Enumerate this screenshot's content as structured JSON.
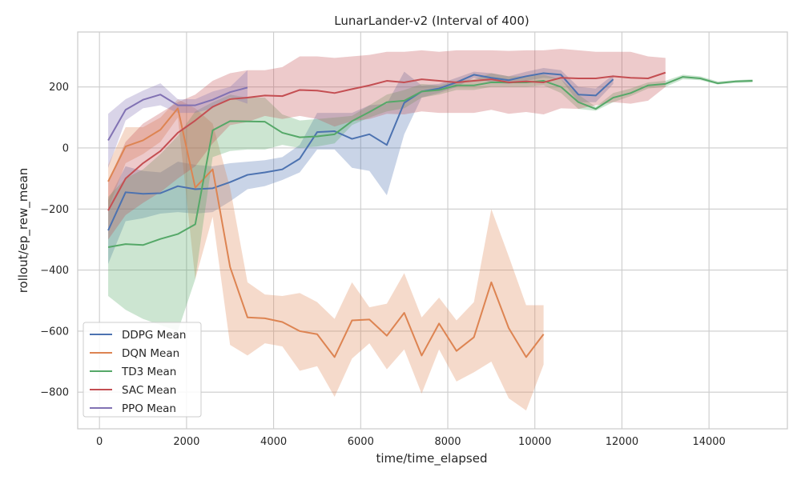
{
  "chart_data": {
    "type": "line",
    "title": "LunarLander-v2 (Interval of 400)",
    "xlabel": "time/time_elapsed",
    "ylabel": "rollout/ep_rew_mean",
    "xlim": [
      -500,
      15800
    ],
    "ylim": [
      -920,
      380
    ],
    "x_ticks": [
      0,
      2000,
      4000,
      6000,
      8000,
      10000,
      12000,
      14000
    ],
    "y_ticks": [
      -800,
      -600,
      -400,
      -200,
      0,
      200
    ],
    "grid": true,
    "legend_position": "lower-left",
    "series": [
      {
        "name": "DDPG Mean",
        "color": "#4c72b0",
        "x": [
          200,
          600,
          1000,
          1400,
          1800,
          2200,
          2600,
          3000,
          3400,
          3800,
          4200,
          4600,
          5000,
          5400,
          5800,
          6200,
          6600,
          7000,
          7400,
          7800,
          8200,
          8600,
          9000,
          9400,
          9800,
          10200,
          10600,
          11000,
          11400,
          11800
        ],
        "y": [
          -270,
          -145,
          -150,
          -148,
          -125,
          -135,
          -132,
          -112,
          -88,
          -80,
          -70,
          -35,
          52,
          55,
          30,
          45,
          10,
          148,
          185,
          195,
          215,
          240,
          230,
          222,
          235,
          245,
          240,
          175,
          172,
          225
        ],
        "lower": [
          -380,
          -240,
          -230,
          -215,
          -210,
          -215,
          -210,
          -175,
          -135,
          -125,
          -105,
          -80,
          -5,
          -5,
          -65,
          -75,
          -155,
          45,
          165,
          180,
          200,
          230,
          215,
          210,
          220,
          230,
          225,
          150,
          150,
          210
        ],
        "upper": [
          -170,
          -60,
          -75,
          -80,
          -45,
          -55,
          -60,
          -50,
          -45,
          -40,
          -30,
          10,
          115,
          115,
          115,
          140,
          145,
          250,
          205,
          210,
          230,
          250,
          245,
          235,
          250,
          262,
          255,
          200,
          195,
          240
        ]
      },
      {
        "name": "DQN Mean",
        "color": "#dd8452",
        "x": [
          200,
          600,
          1000,
          1400,
          1800,
          2200,
          2600,
          3000,
          3400,
          3800,
          4200,
          4600,
          5000,
          5400,
          5800,
          6200,
          6600,
          7000,
          7400,
          7800,
          8200,
          8600,
          9000,
          9400,
          9800,
          10200
        ],
        "y": [
          -110,
          5,
          25,
          60,
          130,
          -130,
          -70,
          -390,
          -555,
          -558,
          -570,
          -600,
          -610,
          -685,
          -565,
          -562,
          -615,
          -540,
          -680,
          -575,
          -665,
          -620,
          -440,
          -590,
          -685,
          -610
        ],
        "lower": [
          -200,
          -50,
          -20,
          20,
          100,
          -430,
          -225,
          -645,
          -680,
          -640,
          -650,
          -730,
          -715,
          -815,
          -690,
          -640,
          -725,
          -660,
          -805,
          -660,
          -765,
          -735,
          -700,
          -820,
          -860,
          -710
        ],
        "upper": [
          -55,
          68,
          68,
          100,
          160,
          130,
          80,
          -130,
          -440,
          -480,
          -485,
          -475,
          -505,
          -560,
          -440,
          -522,
          -510,
          -410,
          -555,
          -490,
          -565,
          -505,
          -200,
          -355,
          -515,
          -515
        ]
      },
      {
        "name": "TD3 Mean",
        "color": "#55a868",
        "x": [
          200,
          600,
          1000,
          1400,
          1800,
          2200,
          2600,
          3000,
          3400,
          3800,
          4200,
          4600,
          5000,
          5400,
          5800,
          6200,
          6600,
          7000,
          7400,
          7800,
          8200,
          8600,
          9000,
          9400,
          9800,
          10200,
          10600,
          11000,
          11400,
          11800,
          12200,
          12600,
          13000,
          13400,
          13800,
          14200,
          14600,
          15000
        ],
        "y": [
          -325,
          -315,
          -318,
          -298,
          -282,
          -250,
          58,
          88,
          87,
          86,
          50,
          35,
          38,
          45,
          88,
          118,
          150,
          155,
          185,
          190,
          205,
          205,
          215,
          215,
          215,
          220,
          200,
          150,
          128,
          165,
          180,
          205,
          210,
          233,
          228,
          212,
          218,
          220
        ],
        "lower": [
          -485,
          -530,
          -560,
          -580,
          -600,
          -430,
          -30,
          -10,
          -5,
          -5,
          10,
          0,
          5,
          15,
          75,
          100,
          120,
          130,
          165,
          175,
          190,
          190,
          200,
          200,
          200,
          205,
          180,
          128,
          122,
          150,
          170,
          195,
          200,
          225,
          222,
          208,
          213,
          215
        ],
        "upper": [
          -160,
          -100,
          -70,
          -20,
          40,
          120,
          150,
          175,
          165,
          165,
          110,
          90,
          95,
          100,
          105,
          140,
          175,
          190,
          210,
          205,
          220,
          225,
          245,
          235,
          235,
          240,
          225,
          175,
          135,
          180,
          195,
          215,
          220,
          240,
          235,
          218,
          222,
          225
        ]
      },
      {
        "name": "SAC Mean",
        "color": "#c44e52",
        "x": [
          200,
          600,
          1000,
          1400,
          1800,
          2200,
          2600,
          3000,
          3400,
          3800,
          4200,
          4600,
          5000,
          5400,
          5800,
          6200,
          6600,
          7000,
          7400,
          7800,
          8200,
          8600,
          9000,
          9400,
          9800,
          10200,
          10600,
          11000,
          11400,
          11800,
          12200,
          12600,
          13000
        ],
        "y": [
          -205,
          -100,
          -50,
          -10,
          50,
          90,
          135,
          160,
          165,
          172,
          170,
          190,
          188,
          180,
          193,
          205,
          220,
          215,
          225,
          220,
          215,
          220,
          225,
          215,
          218,
          215,
          230,
          228,
          228,
          235,
          230,
          228,
          247
        ],
        "lower": [
          -300,
          -220,
          -180,
          -145,
          -100,
          -60,
          15,
          75,
          85,
          105,
          95,
          105,
          95,
          70,
          88,
          95,
          112,
          110,
          120,
          115,
          115,
          115,
          125,
          112,
          118,
          110,
          130,
          128,
          140,
          150,
          145,
          155,
          200
        ],
        "upper": [
          -110,
          20,
          80,
          115,
          150,
          175,
          220,
          245,
          255,
          255,
          265,
          300,
          300,
          295,
          300,
          305,
          315,
          315,
          320,
          315,
          320,
          320,
          320,
          318,
          320,
          320,
          325,
          320,
          315,
          315,
          315,
          300,
          295
        ]
      },
      {
        "name": "PPO Mean",
        "color": "#8172b3",
        "x": [
          200,
          600,
          1000,
          1400,
          1800,
          2200,
          2600,
          3000,
          3400
        ],
        "y": [
          25,
          125,
          158,
          175,
          140,
          140,
          158,
          183,
          198
        ],
        "lower": [
          -65,
          90,
          130,
          140,
          115,
          115,
          130,
          165,
          145
        ],
        "upper": [
          112,
          160,
          188,
          212,
          160,
          160,
          185,
          200,
          255
        ]
      }
    ]
  }
}
